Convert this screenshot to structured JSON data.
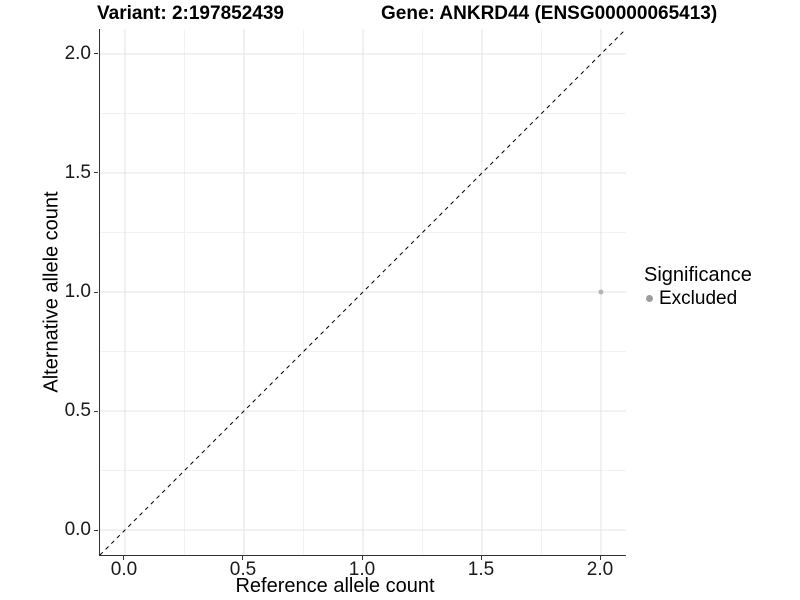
{
  "header": {
    "variant_title": "Variant: 2:197852439",
    "gene_title": "Gene: ANKRD44 (ENSG00000065413)"
  },
  "colors": {
    "background": "#ffffff",
    "axis_line": "#333333",
    "tick_mark": "#333333",
    "tick_label": "#1a1a1a",
    "grid_major": "#e3e3e3",
    "grid_minor": "#f2f2f2",
    "point": "#b5b5b5",
    "legend_key": "#9d9d9d",
    "identity_line": "#000000"
  },
  "chart_data": {
    "type": "scatter",
    "xlabel": "Reference allele count",
    "ylabel": "Alternative allele count",
    "xlim": [
      -0.105,
      2.105
    ],
    "ylim": [
      -0.105,
      2.105
    ],
    "xticks": {
      "values": [
        0.0,
        0.5,
        1.0,
        1.5,
        2.0
      ],
      "labels": [
        "0.0",
        "0.5",
        "1.0",
        "1.5",
        "2.0"
      ]
    },
    "yticks": {
      "values": [
        0.0,
        0.5,
        1.0,
        1.5,
        2.0
      ],
      "labels": [
        "0.0",
        "0.5",
        "1.0",
        "1.5",
        "2.0"
      ]
    },
    "minor_ticks": [
      0.25,
      0.75,
      1.25,
      1.75
    ],
    "grid": "major+minor",
    "identity_line": {
      "slope": 1,
      "intercept": 0,
      "style": "dashed"
    },
    "series": [
      {
        "name": "Excluded",
        "color": "#b5b5b5",
        "points": [
          {
            "x": 2.0,
            "y": 1.0
          }
        ]
      }
    ],
    "legend": {
      "title": "Significance",
      "position": "right",
      "entries": [
        {
          "label": "Excluded",
          "color": "#9d9d9d"
        }
      ]
    }
  }
}
